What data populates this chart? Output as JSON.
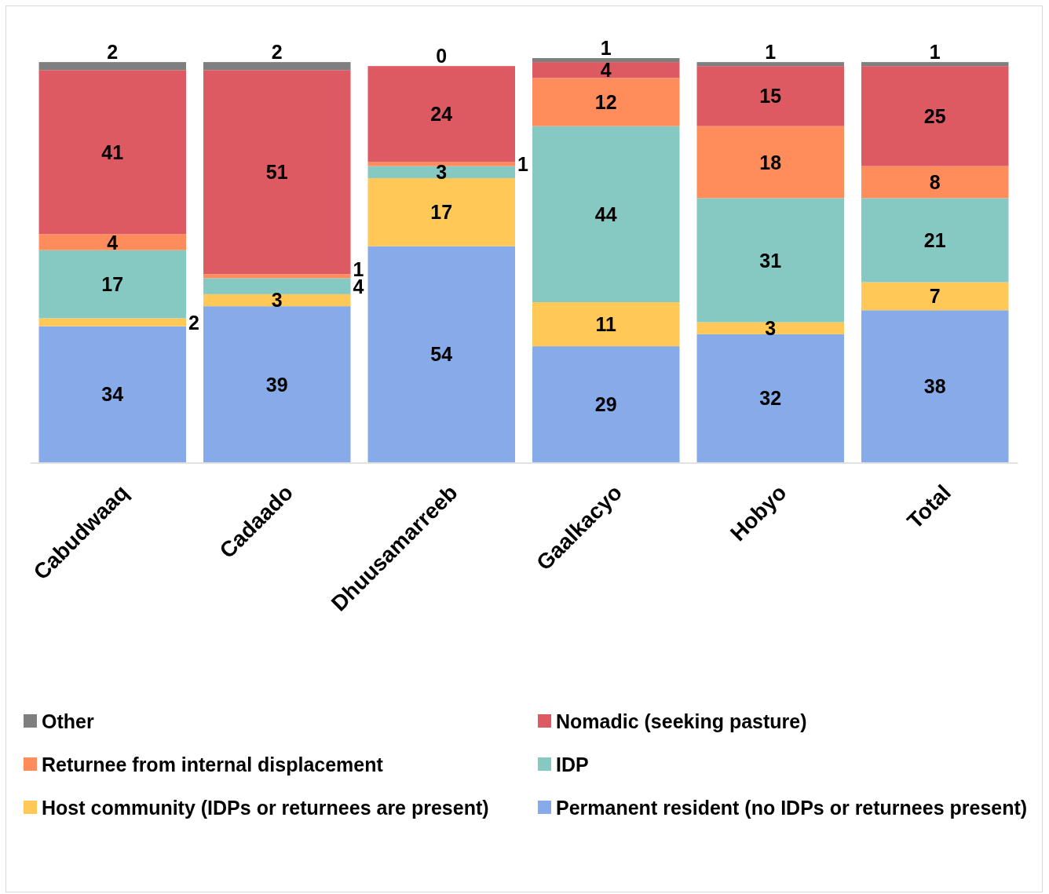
{
  "chart_data": {
    "type": "bar",
    "stacked": true,
    "data_labels": true,
    "legend": "bottom",
    "categories": [
      "Cabudwaaq",
      "Cadaado",
      "Dhuusamarreeb",
      "Gaalkacyo",
      "Hobyo",
      "Total"
    ],
    "series": [
      {
        "name": "Permanent resident (no IDPs or returnees present)",
        "color": "#86abe8",
        "values": [
          34,
          39,
          54,
          29,
          32,
          38
        ]
      },
      {
        "name": "Host community (IDPs or returnees are present)",
        "color": "#ffc857",
        "values": [
          2,
          3,
          17,
          11,
          3,
          7
        ]
      },
      {
        "name": "IDP",
        "color": "#86c9c3",
        "values": [
          17,
          4,
          3,
          44,
          31,
          21
        ]
      },
      {
        "name": "Returnee from internal displacement",
        "color": "#ff8c5a",
        "values": [
          4,
          1,
          1,
          12,
          18,
          8
        ]
      },
      {
        "name": "Nomadic (seeking pasture)",
        "color": "#de5a63",
        "values": [
          41,
          51,
          24,
          4,
          15,
          25
        ]
      },
      {
        "name": "Other",
        "color": "#7f7f7f",
        "values": [
          2,
          2,
          0,
          1,
          1,
          1
        ]
      }
    ]
  }
}
